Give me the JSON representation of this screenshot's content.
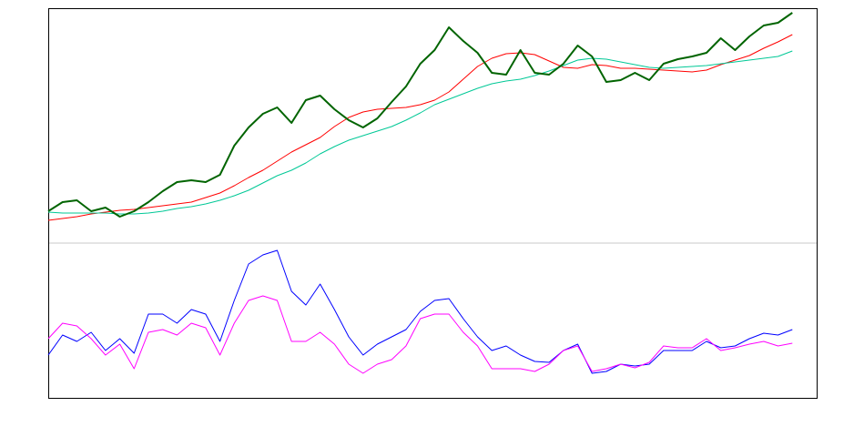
{
  "chart_data": [
    {
      "type": "line",
      "x": [
        0,
        1,
        2,
        3,
        4,
        5,
        6,
        7,
        8,
        9,
        10,
        11,
        12,
        13,
        14,
        15,
        16,
        17,
        18,
        19,
        20,
        21,
        22,
        23,
        24,
        25,
        26,
        27,
        28,
        29,
        30,
        31,
        32,
        33,
        34,
        35,
        36,
        37,
        38,
        39,
        40,
        41,
        42,
        43,
        44,
        45,
        46,
        47,
        48,
        49,
        50,
        51,
        52
      ],
      "xlim": [
        0,
        53.7
      ],
      "ylim": [
        0,
        258
      ],
      "series": [
        {
          "color": "#ff0000",
          "width": 1,
          "values": [
            25,
            27,
            29,
            32,
            34,
            36,
            37,
            39,
            41,
            43,
            45,
            50,
            55,
            63,
            72,
            80,
            90,
            100,
            108,
            116,
            128,
            138,
            144,
            147,
            148,
            149,
            152,
            157,
            166,
            180,
            194,
            203,
            208,
            209,
            207,
            200,
            193,
            192,
            196,
            195,
            192,
            192,
            191,
            190,
            189,
            188,
            190,
            196,
            201,
            206,
            214,
            221,
            229
          ]
        },
        {
          "color": "#00c896",
          "width": 1,
          "values": [
            34,
            33,
            33,
            33,
            33,
            32,
            32,
            33,
            35,
            38,
            40,
            43,
            47,
            52,
            58,
            66,
            74,
            80,
            88,
            98,
            106,
            113,
            118,
            123,
            128,
            135,
            143,
            152,
            158,
            164,
            170,
            175,
            178,
            180,
            184,
            189,
            195,
            201,
            203,
            202,
            199,
            196,
            193,
            192,
            193,
            194,
            195,
            197,
            199,
            201,
            203,
            205,
            211
          ]
        },
        {
          "color": "#006400",
          "width": 2,
          "values": [
            35,
            45,
            47,
            35,
            39,
            29,
            35,
            45,
            57,
            67,
            69,
            67,
            75,
            107,
            127,
            142,
            149,
            132,
            157,
            162,
            147,
            135,
            127,
            137,
            155,
            172,
            197,
            212,
            237,
            222,
            209,
            187,
            185,
            212,
            187,
            185,
            197,
            217,
            205,
            177,
            179,
            187,
            179,
            197,
            202,
            205,
            209,
            225,
            212,
            227,
            239,
            242,
            253
          ]
        }
      ]
    },
    {
      "type": "line",
      "x": [
        0,
        1,
        2,
        3,
        4,
        5,
        6,
        7,
        8,
        9,
        10,
        11,
        12,
        13,
        14,
        15,
        16,
        17,
        18,
        19,
        20,
        21,
        22,
        23,
        24,
        25,
        26,
        27,
        28,
        29,
        30,
        31,
        32,
        33,
        34,
        35,
        36,
        37,
        38,
        39,
        40,
        41,
        42,
        43,
        44,
        45,
        46,
        47,
        48,
        49,
        50,
        51,
        52
      ],
      "xlim": [
        0,
        53.7
      ],
      "ylim": [
        0,
        171
      ],
      "series": [
        {
          "color": "#0000ff",
          "width": 1,
          "values": [
            48,
            70,
            63,
            73,
            53,
            66,
            50,
            93,
            93,
            83,
            98,
            93,
            63,
            108,
            148,
            158,
            163,
            118,
            103,
            126,
            98,
            68,
            48,
            60,
            68,
            76,
            96,
            108,
            110,
            88,
            68,
            53,
            58,
            48,
            41,
            40,
            53,
            60,
            28,
            30,
            38,
            36,
            38,
            53,
            53,
            53,
            63,
            56,
            58,
            66,
            72,
            70,
            76
          ]
        },
        {
          "color": "#ff00ff",
          "width": 1,
          "values": [
            66,
            83,
            80,
            66,
            48,
            60,
            33,
            73,
            76,
            70,
            83,
            78,
            48,
            83,
            108,
            113,
            108,
            63,
            63,
            73,
            60,
            38,
            28,
            38,
            43,
            58,
            88,
            93,
            93,
            73,
            58,
            33,
            33,
            33,
            30,
            38,
            53,
            58,
            30,
            33,
            38,
            34,
            40,
            58,
            56,
            56,
            66,
            53,
            56,
            60,
            63,
            58,
            61
          ]
        }
      ]
    }
  ]
}
